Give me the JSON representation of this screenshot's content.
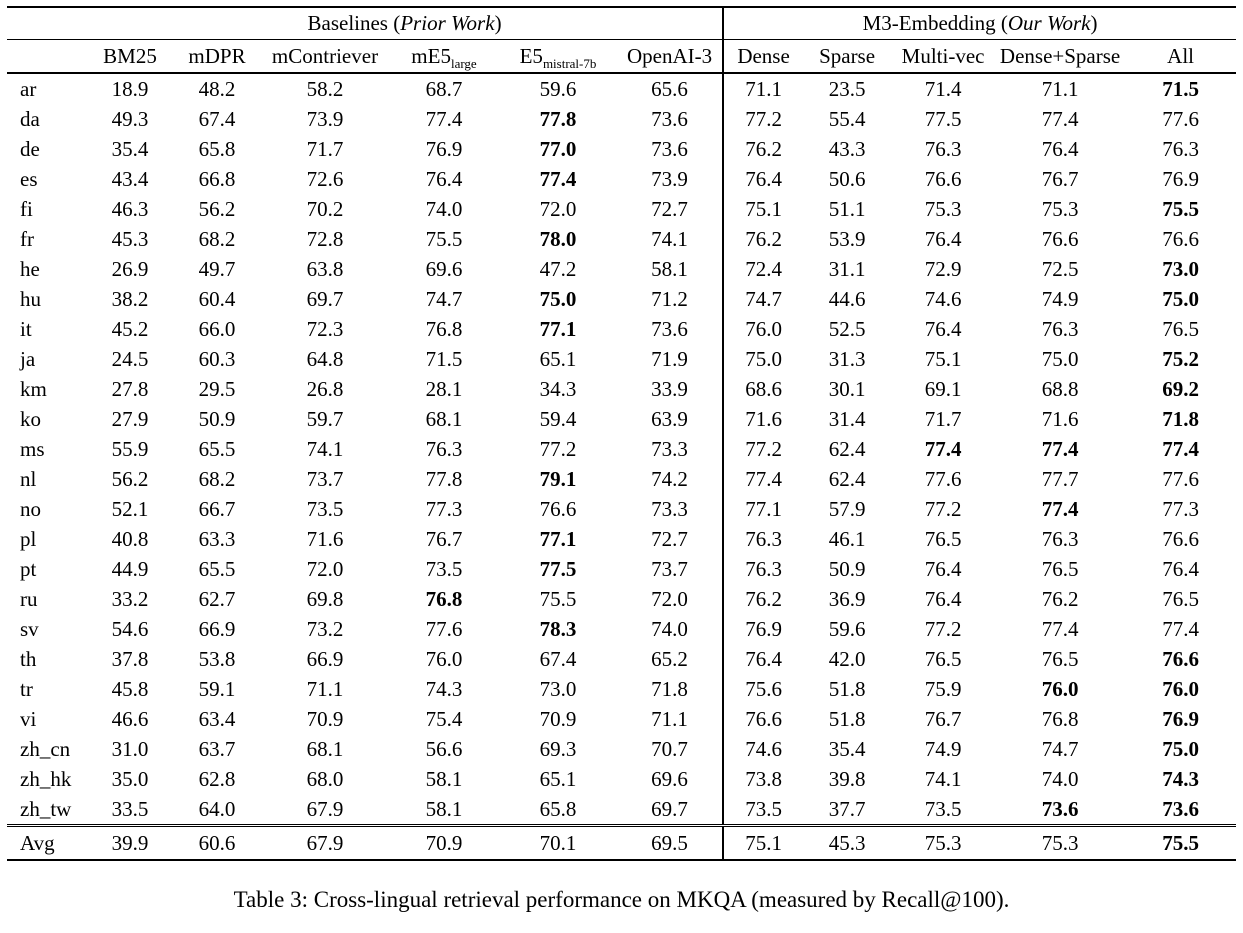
{
  "caption": "Table 3: Cross-lingual retrieval performance on MKQA (measured by Recall@100).",
  "table": {
    "groups": [
      {
        "prefix": "Baselines (",
        "italic": "Prior Work",
        "suffix": ")",
        "span": 6
      },
      {
        "prefix": "M3-Embedding (",
        "italic": "Our Work",
        "suffix": ")",
        "span": 5
      }
    ],
    "columns": [
      {
        "label": "BM25"
      },
      {
        "label": "mDPR"
      },
      {
        "label": "mContriever"
      },
      {
        "label": "mE5",
        "sub": "large"
      },
      {
        "label": "E5",
        "sub": "mistral-7b"
      },
      {
        "label": "OpenAI-3"
      },
      {
        "label": "Dense",
        "divider": true
      },
      {
        "label": "Sparse"
      },
      {
        "label": "Multi-vec"
      },
      {
        "label": "Dense+Sparse"
      },
      {
        "label": "All"
      }
    ],
    "rows": [
      {
        "lang": "ar",
        "values": [
          "18.9",
          "48.2",
          "58.2",
          "68.7",
          "59.6",
          "65.6",
          "71.1",
          "23.5",
          "71.4",
          "71.1",
          "71.5"
        ],
        "bold": [
          10
        ]
      },
      {
        "lang": "da",
        "values": [
          "49.3",
          "67.4",
          "73.9",
          "77.4",
          "77.8",
          "73.6",
          "77.2",
          "55.4",
          "77.5",
          "77.4",
          "77.6"
        ],
        "bold": [
          4
        ]
      },
      {
        "lang": "de",
        "values": [
          "35.4",
          "65.8",
          "71.7",
          "76.9",
          "77.0",
          "73.6",
          "76.2",
          "43.3",
          "76.3",
          "76.4",
          "76.3"
        ],
        "bold": [
          4
        ]
      },
      {
        "lang": "es",
        "values": [
          "43.4",
          "66.8",
          "72.6",
          "76.4",
          "77.4",
          "73.9",
          "76.4",
          "50.6",
          "76.6",
          "76.7",
          "76.9"
        ],
        "bold": [
          4
        ]
      },
      {
        "lang": "fi",
        "values": [
          "46.3",
          "56.2",
          "70.2",
          "74.0",
          "72.0",
          "72.7",
          "75.1",
          "51.1",
          "75.3",
          "75.3",
          "75.5"
        ],
        "bold": [
          10
        ]
      },
      {
        "lang": "fr",
        "values": [
          "45.3",
          "68.2",
          "72.8",
          "75.5",
          "78.0",
          "74.1",
          "76.2",
          "53.9",
          "76.4",
          "76.6",
          "76.6"
        ],
        "bold": [
          4
        ]
      },
      {
        "lang": "he",
        "values": [
          "26.9",
          "49.7",
          "63.8",
          "69.6",
          "47.2",
          "58.1",
          "72.4",
          "31.1",
          "72.9",
          "72.5",
          "73.0"
        ],
        "bold": [
          10
        ]
      },
      {
        "lang": "hu",
        "values": [
          "38.2",
          "60.4",
          "69.7",
          "74.7",
          "75.0",
          "71.2",
          "74.7",
          "44.6",
          "74.6",
          "74.9",
          "75.0"
        ],
        "bold": [
          4,
          10
        ]
      },
      {
        "lang": "it",
        "values": [
          "45.2",
          "66.0",
          "72.3",
          "76.8",
          "77.1",
          "73.6",
          "76.0",
          "52.5",
          "76.4",
          "76.3",
          "76.5"
        ],
        "bold": [
          4
        ]
      },
      {
        "lang": "ja",
        "values": [
          "24.5",
          "60.3",
          "64.8",
          "71.5",
          "65.1",
          "71.9",
          "75.0",
          "31.3",
          "75.1",
          "75.0",
          "75.2"
        ],
        "bold": [
          10
        ]
      },
      {
        "lang": "km",
        "values": [
          "27.8",
          "29.5",
          "26.8",
          "28.1",
          "34.3",
          "33.9",
          "68.6",
          "30.1",
          "69.1",
          "68.8",
          "69.2"
        ],
        "bold": [
          10
        ]
      },
      {
        "lang": "ko",
        "values": [
          "27.9",
          "50.9",
          "59.7",
          "68.1",
          "59.4",
          "63.9",
          "71.6",
          "31.4",
          "71.7",
          "71.6",
          "71.8"
        ],
        "bold": [
          10
        ]
      },
      {
        "lang": "ms",
        "values": [
          "55.9",
          "65.5",
          "74.1",
          "76.3",
          "77.2",
          "73.3",
          "77.2",
          "62.4",
          "77.4",
          "77.4",
          "77.4"
        ],
        "bold": [
          8,
          9,
          10
        ]
      },
      {
        "lang": "nl",
        "values": [
          "56.2",
          "68.2",
          "73.7",
          "77.8",
          "79.1",
          "74.2",
          "77.4",
          "62.4",
          "77.6",
          "77.7",
          "77.6"
        ],
        "bold": [
          4
        ]
      },
      {
        "lang": "no",
        "values": [
          "52.1",
          "66.7",
          "73.5",
          "77.3",
          "76.6",
          "73.3",
          "77.1",
          "57.9",
          "77.2",
          "77.4",
          "77.3"
        ],
        "bold": [
          9
        ]
      },
      {
        "lang": "pl",
        "values": [
          "40.8",
          "63.3",
          "71.6",
          "76.7",
          "77.1",
          "72.7",
          "76.3",
          "46.1",
          "76.5",
          "76.3",
          "76.6"
        ],
        "bold": [
          4
        ]
      },
      {
        "lang": "pt",
        "values": [
          "44.9",
          "65.5",
          "72.0",
          "73.5",
          "77.5",
          "73.7",
          "76.3",
          "50.9",
          "76.4",
          "76.5",
          "76.4"
        ],
        "bold": [
          4
        ]
      },
      {
        "lang": "ru",
        "values": [
          "33.2",
          "62.7",
          "69.8",
          "76.8",
          "75.5",
          "72.0",
          "76.2",
          "36.9",
          "76.4",
          "76.2",
          "76.5"
        ],
        "bold": [
          3
        ]
      },
      {
        "lang": "sv",
        "values": [
          "54.6",
          "66.9",
          "73.2",
          "77.6",
          "78.3",
          "74.0",
          "76.9",
          "59.6",
          "77.2",
          "77.4",
          "77.4"
        ],
        "bold": [
          4
        ]
      },
      {
        "lang": "th",
        "values": [
          "37.8",
          "53.8",
          "66.9",
          "76.0",
          "67.4",
          "65.2",
          "76.4",
          "42.0",
          "76.5",
          "76.5",
          "76.6"
        ],
        "bold": [
          10
        ]
      },
      {
        "lang": "tr",
        "values": [
          "45.8",
          "59.1",
          "71.1",
          "74.3",
          "73.0",
          "71.8",
          "75.6",
          "51.8",
          "75.9",
          "76.0",
          "76.0"
        ],
        "bold": [
          9,
          10
        ]
      },
      {
        "lang": "vi",
        "values": [
          "46.6",
          "63.4",
          "70.9",
          "75.4",
          "70.9",
          "71.1",
          "76.6",
          "51.8",
          "76.7",
          "76.8",
          "76.9"
        ],
        "bold": [
          10
        ]
      },
      {
        "lang": "zh_cn",
        "values": [
          "31.0",
          "63.7",
          "68.1",
          "56.6",
          "69.3",
          "70.7",
          "74.6",
          "35.4",
          "74.9",
          "74.7",
          "75.0"
        ],
        "bold": [
          10
        ]
      },
      {
        "lang": "zh_hk",
        "values": [
          "35.0",
          "62.8",
          "68.0",
          "58.1",
          "65.1",
          "69.6",
          "73.8",
          "39.8",
          "74.1",
          "74.0",
          "74.3"
        ],
        "bold": [
          10
        ]
      },
      {
        "lang": "zh_tw",
        "values": [
          "33.5",
          "64.0",
          "67.9",
          "58.1",
          "65.8",
          "69.7",
          "73.5",
          "37.7",
          "73.5",
          "73.6",
          "73.6"
        ],
        "bold": [
          9,
          10
        ]
      }
    ],
    "avg": {
      "lang": "Avg",
      "values": [
        "39.9",
        "60.6",
        "67.9",
        "70.9",
        "70.1",
        "69.5",
        "75.1",
        "45.3",
        "75.3",
        "75.3",
        "75.5"
      ],
      "bold": [
        10
      ]
    }
  }
}
